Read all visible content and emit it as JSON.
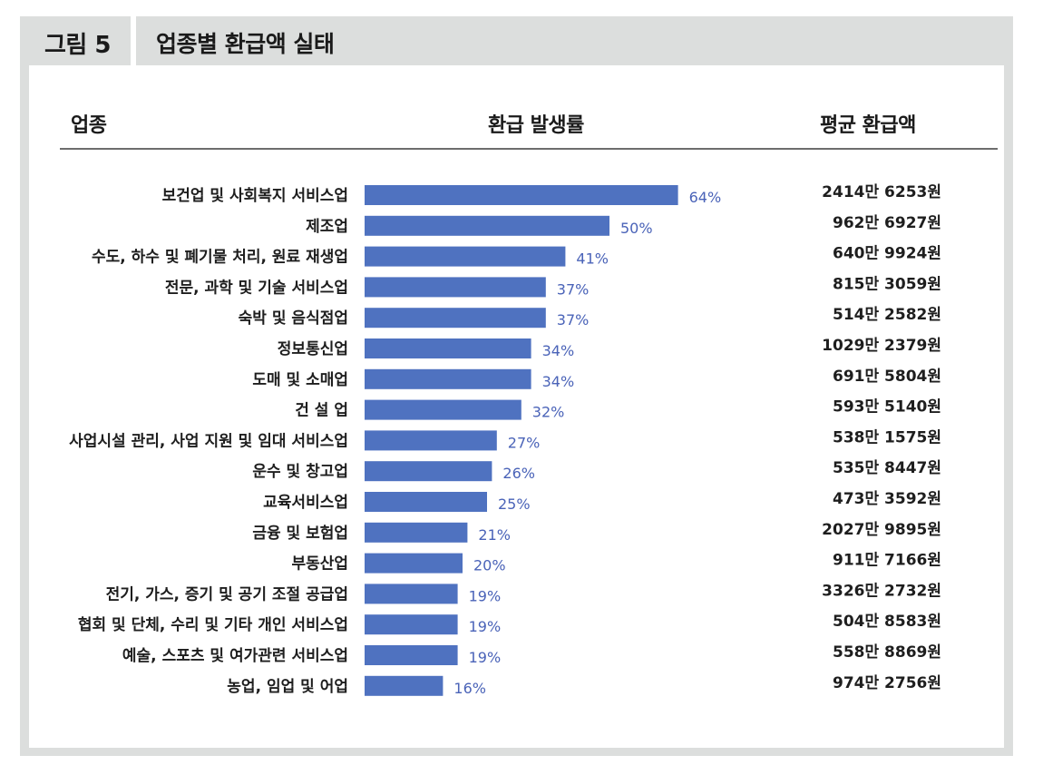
{
  "figure": {
    "number": "그림 5",
    "title": "업종별 환급액 실태"
  },
  "columns": {
    "industry": "업종",
    "rate": "환급 발생률",
    "amount": "평균 환급액"
  },
  "chart_data": {
    "type": "bar",
    "orientation": "horizontal",
    "bar_color": "#4f72c0",
    "label_color": "#4a63b8",
    "xlim": [
      0,
      100
    ],
    "categories": [
      "보건업 및 사회복지 서비스업",
      "제조업",
      "수도, 하수 및 폐기물 처리, 원료 재생업",
      "전문, 과학 및 기술 서비스업",
      "숙박 및 음식점업",
      "정보통신업",
      "도매 및 소매업",
      "건 설 업",
      "사업시설 관리, 사업 지원 및 임대 서비스업",
      "운수 및 창고업",
      "교육서비스업",
      "금융 및 보험업",
      "부동산업",
      "전기, 가스, 증기 및 공기 조절 공급업",
      "협회 및 단체, 수리 및 기타 개인 서비스업",
      "예술, 스포츠 및 여가관련 서비스업",
      "농업, 임업 및 어업"
    ],
    "values": [
      64,
      50,
      41,
      37,
      37,
      34,
      34,
      32,
      27,
      26,
      25,
      21,
      20,
      19,
      19,
      19,
      16
    ],
    "value_labels": [
      "64%",
      "50%",
      "41%",
      "37%",
      "37%",
      "34%",
      "34%",
      "32%",
      "27%",
      "26%",
      "25%",
      "21%",
      "20%",
      "19%",
      "19%",
      "19%",
      "16%"
    ],
    "amounts": [
      "2414만 6253원",
      "962만 6927원",
      "640만 9924원",
      "815만 3059원",
      "514만 2582원",
      "1029만 2379원",
      "691만 5804원",
      "593만 5140원",
      "538만 1575원",
      "535만 8447원",
      "473만 3592원",
      "2027만 9895원",
      "911만 7166원",
      "3326만 2732원",
      "504만 8583원",
      "558만 8869원",
      "974만 2756원"
    ]
  }
}
